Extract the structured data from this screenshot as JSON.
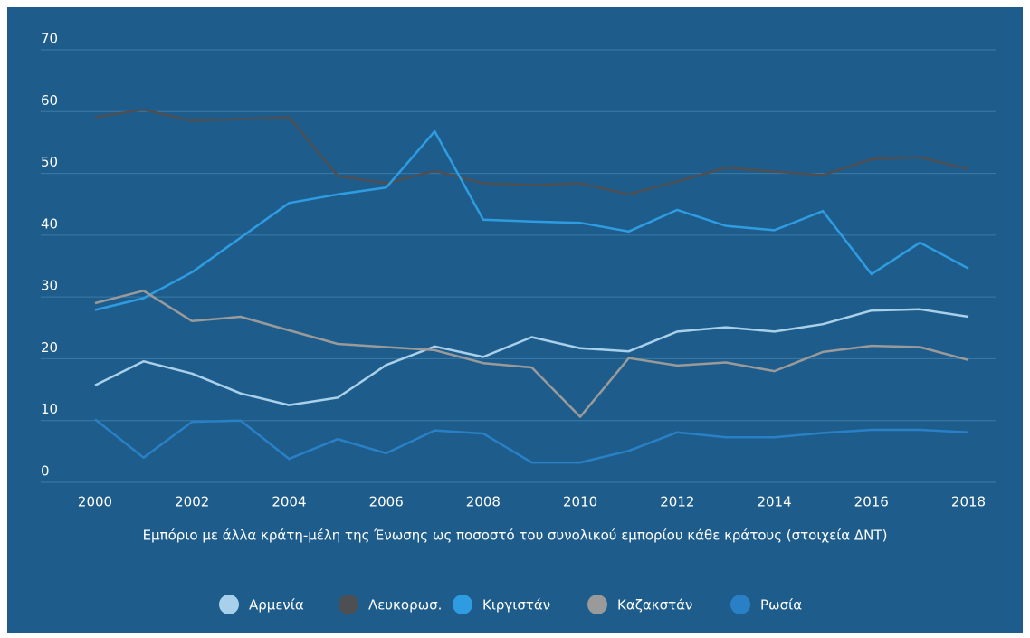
{
  "chart_data": {
    "type": "line",
    "x_label": "Εμπόριο με άλλα κράτη-μέλη της Ένωσης ως ποσοστό του συνολικού εμπορίου κάθε κράτους (στοιχεία ΔΝΤ)",
    "x": [
      2000,
      2001,
      2002,
      2003,
      2004,
      2005,
      2006,
      2007,
      2008,
      2009,
      2010,
      2011,
      2012,
      2013,
      2014,
      2015,
      2016,
      2017,
      2018
    ],
    "xlim": [
      2000,
      2018
    ],
    "xticks": [
      2000,
      2002,
      2004,
      2006,
      2008,
      2010,
      2012,
      2014,
      2016,
      2018
    ],
    "ylim": [
      0,
      70
    ],
    "yticks": [
      0,
      10,
      20,
      30,
      40,
      50,
      60,
      70
    ],
    "grid": true,
    "legend": "bottom",
    "series": [
      {
        "name": "Αρμενία",
        "color": "#a9d0ea",
        "values": [
          15.7,
          19.6,
          17.6,
          14.4,
          12.5,
          13.7,
          19.0,
          22.0,
          20.3,
          23.5,
          21.7,
          21.2,
          24.4,
          25.1,
          24.4,
          25.6,
          27.8,
          28.0,
          26.8
        ]
      },
      {
        "name": "Λευκορωσ.",
        "color": "#4d4f52",
        "values": [
          59.1,
          60.3,
          58.5,
          58.8,
          59.1,
          49.6,
          48.4,
          50.4,
          48.4,
          48.1,
          48.4,
          46.6,
          48.7,
          50.9,
          50.3,
          49.7,
          52.3,
          52.6,
          50.7
        ]
      },
      {
        "name": "Κιργιστάν",
        "color": "#2f9ce2",
        "values": [
          27.9,
          29.8,
          34.0,
          39.6,
          45.2,
          46.6,
          47.7,
          56.8,
          42.5,
          42.2,
          42.0,
          40.6,
          44.1,
          41.5,
          40.8,
          43.9,
          33.7,
          38.8,
          34.6
        ]
      },
      {
        "name": "Καζακστάν",
        "color": "#9a9a9a",
        "values": [
          29.0,
          31.0,
          26.1,
          26.8,
          24.6,
          22.4,
          21.9,
          21.4,
          19.3,
          18.6,
          10.6,
          20.1,
          18.9,
          19.4,
          18.0,
          21.1,
          22.1,
          21.9,
          19.8
        ]
      },
      {
        "name": "Ρωσία",
        "color": "#2a80c6",
        "values": [
          10.2,
          4.0,
          9.8,
          10.0,
          3.8,
          7.0,
          4.7,
          8.4,
          7.9,
          3.2,
          3.2,
          5.1,
          8.1,
          7.3,
          7.3,
          8.0,
          8.5,
          8.5,
          8.1
        ]
      }
    ]
  }
}
